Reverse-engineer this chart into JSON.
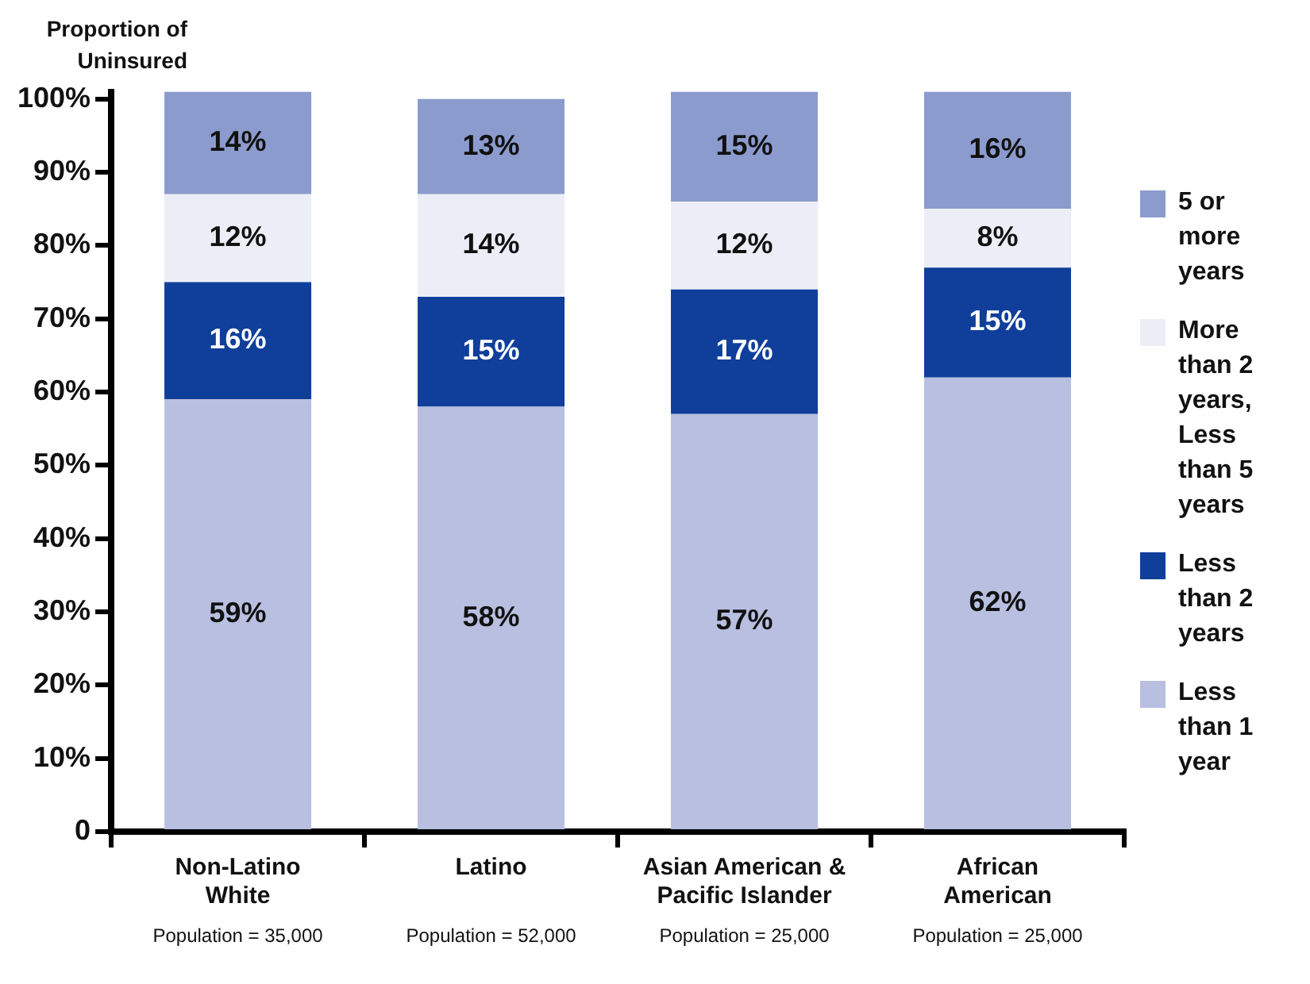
{
  "chart_data": {
    "type": "bar",
    "ylabel": "Proportion of Uninsured",
    "stacked": true,
    "data_labels": false,
    "legend": "right",
    "categories": [
      "Non-Latino White",
      "Latino",
      "Asian American & Pacific Islander",
      "African American"
    ],
    "series": [
      {
        "name": "Less than 1 year",
        "color": "#b8bfe0",
        "values": [
          59,
          58,
          57,
          62
        ],
        "value_labels": [
          "59%",
          "58%",
          "57%",
          "62%"
        ]
      },
      {
        "name": "Less than 2 years",
        "color": "#0f3f9a",
        "values": [
          16,
          15,
          17,
          15
        ],
        "value_labels": [
          "16%",
          "15%",
          "17%",
          "15%"
        ]
      },
      {
        "name": "More than 2 years, Less than 5 years",
        "color": "#eceef7",
        "values": [
          12,
          14,
          12,
          8
        ],
        "value_labels": [
          "12%",
          "14%",
          "12%",
          "8%"
        ]
      },
      {
        "name": "5 or more years",
        "color": "#8c9bcd",
        "values": [
          14,
          13,
          15,
          16
        ],
        "value_labels": [
          "14%",
          "13%",
          "15%",
          "16%"
        ]
      }
    ],
    "ylim": [
      0,
      101
    ],
    "yticks": [
      0,
      {
        "value": 10,
        "label": "10%"
      },
      {
        "value": 20,
        "label": "20%"
      },
      {
        "value": 30,
        "label": "30%"
      },
      {
        "value": 40,
        "label": "40%"
      },
      {
        "value": 50,
        "label": "50%"
      },
      {
        "value": 60,
        "label": "60%"
      },
      {
        "value": 70,
        "label": "70%"
      },
      {
        "value": 80,
        "label": "80%"
      },
      {
        "value": 90,
        "label": "90%"
      },
      {
        "value": 100,
        "label": "100%"
      }
    ],
    "annotations": [
      "Population = 35,000",
      "Population = 52,000",
      "Population = 25,000",
      "Population = 25,000"
    ]
  }
}
